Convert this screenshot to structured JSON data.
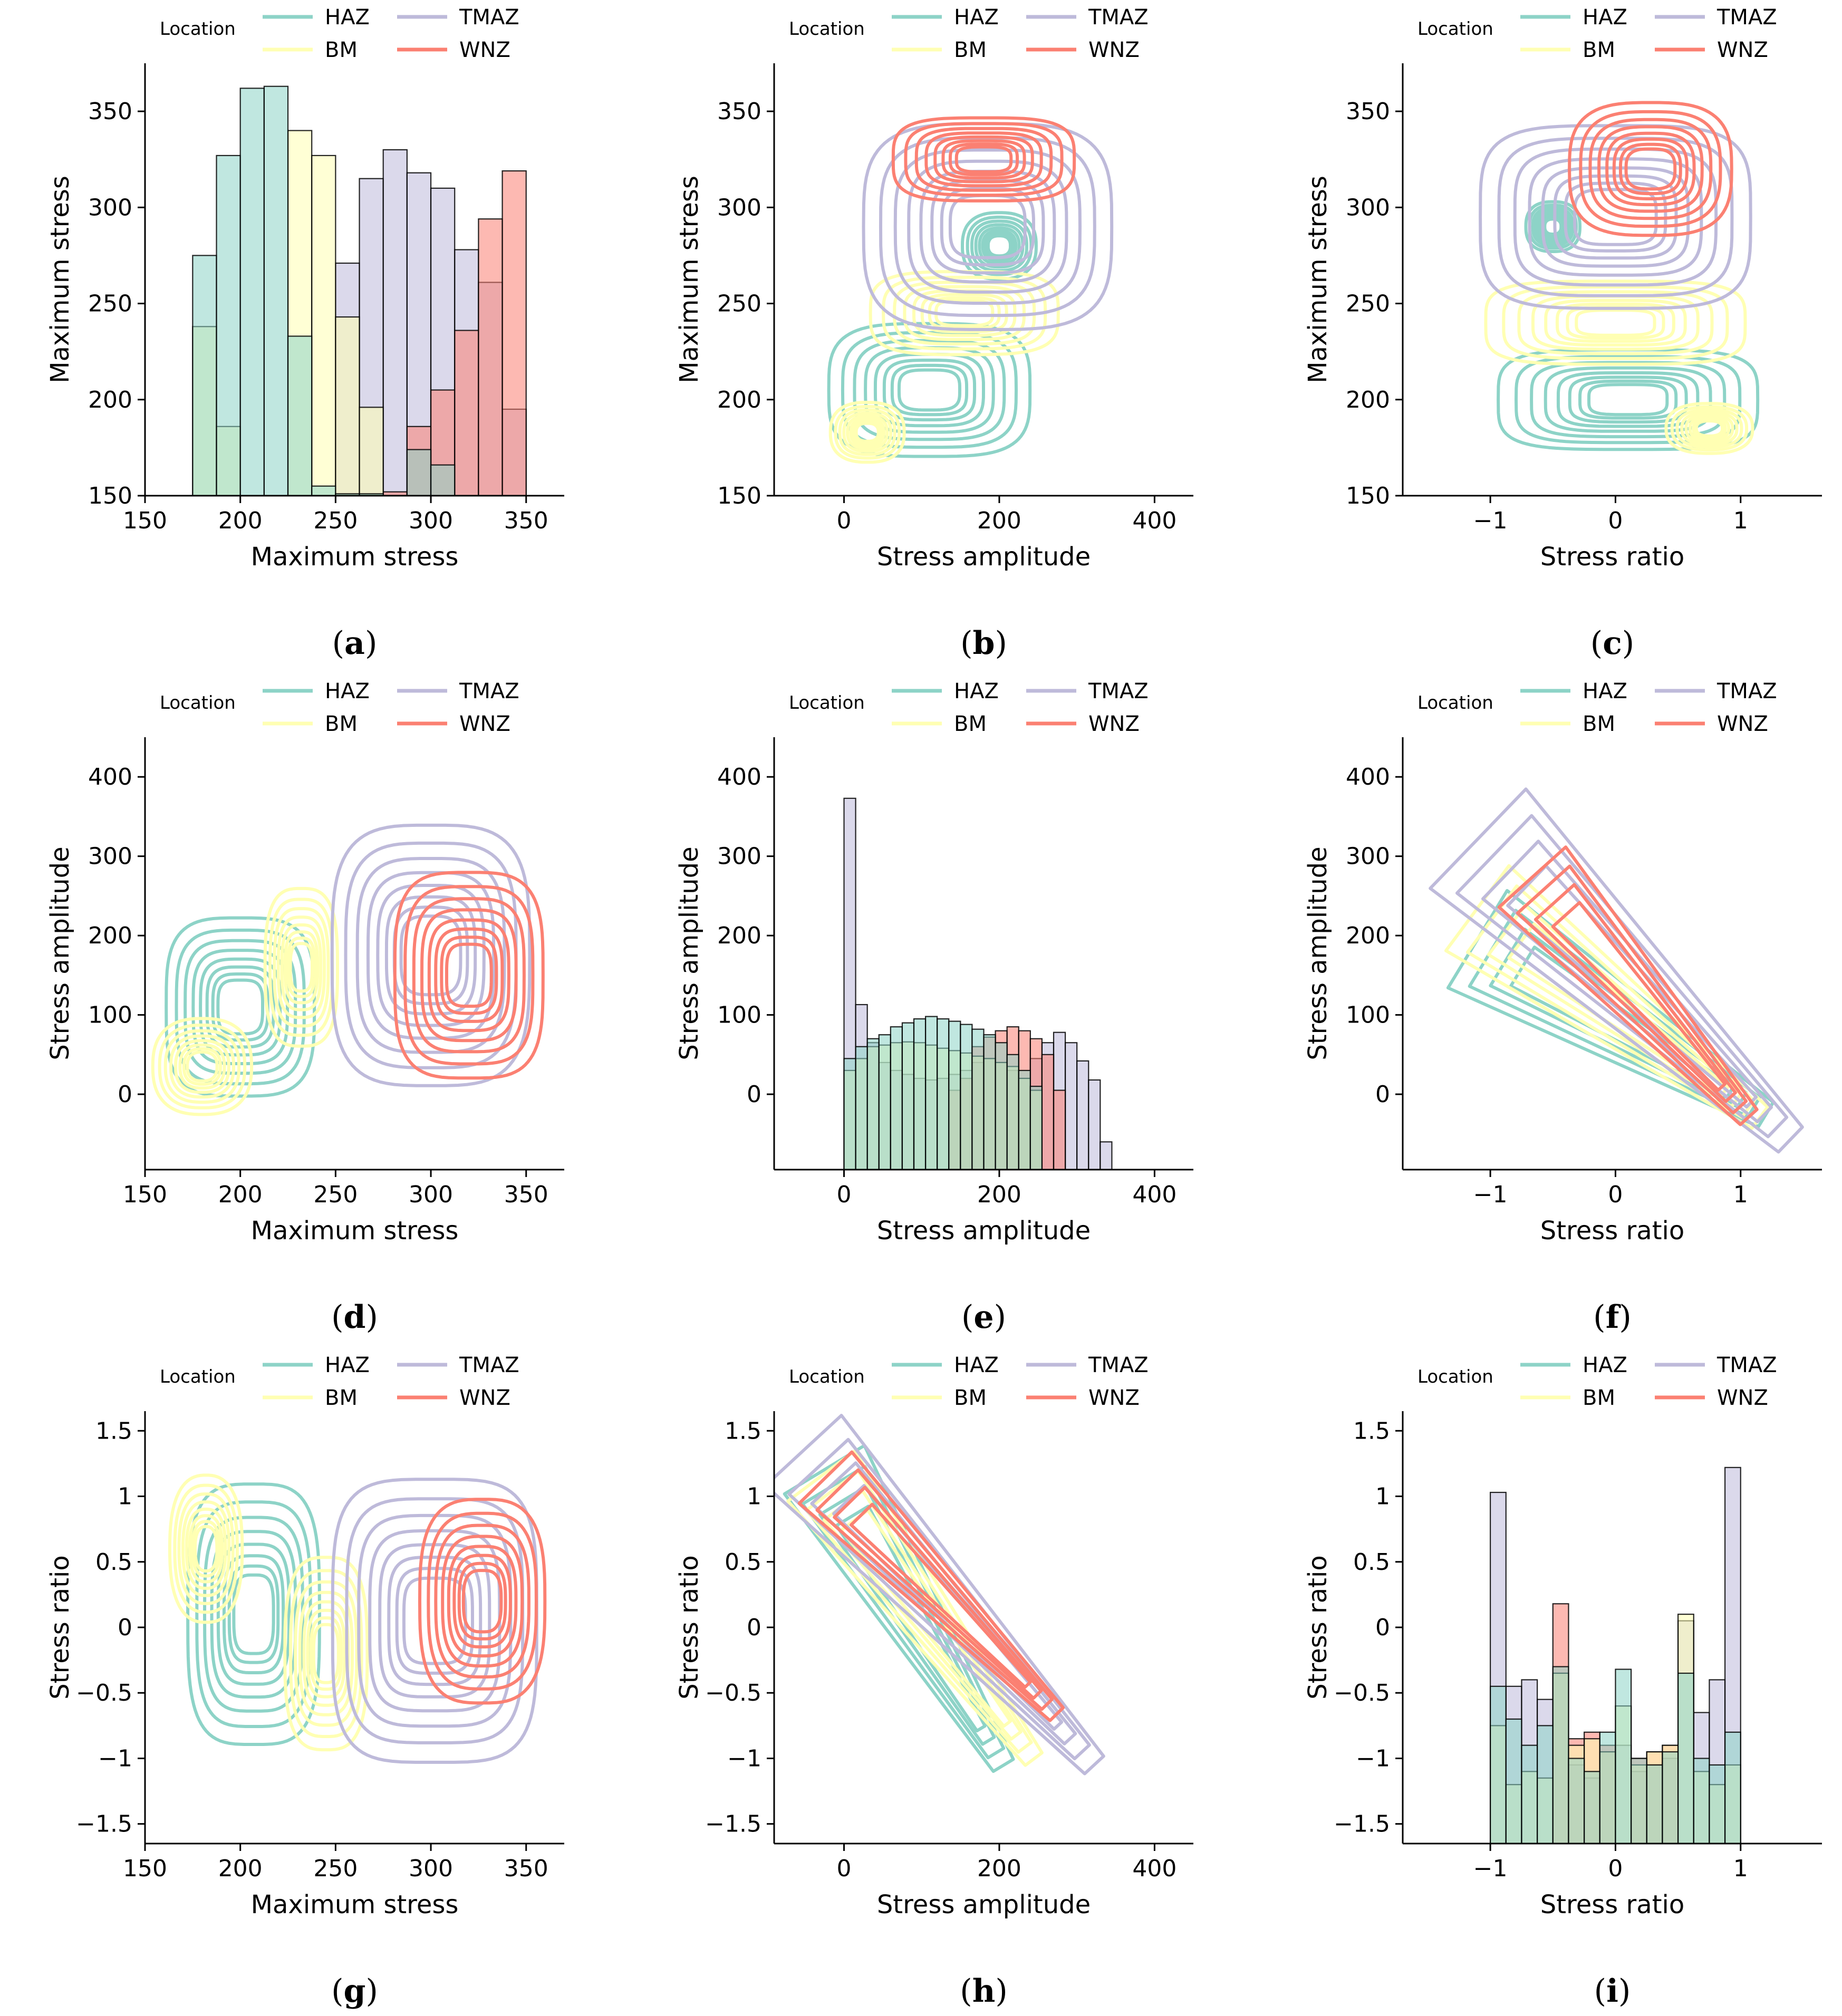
{
  "legend": {
    "title": "Location",
    "entries": [
      {
        "name": "HAZ",
        "color": "#8dd3c7"
      },
      {
        "name": "TMAZ",
        "color": "#bebada"
      },
      {
        "name": "BM",
        "color": "#ffffb3"
      },
      {
        "name": "WNZ",
        "color": "#fb8072"
      }
    ]
  },
  "chart_data": [
    {
      "id": "a",
      "type": "histogram",
      "xlabel": "Maximum stress",
      "ylabel": "Maximum stress",
      "xlim": [
        150,
        370
      ],
      "ylim": [
        150,
        375
      ],
      "xticks": [
        150,
        200,
        250,
        300,
        350
      ],
      "yticks": [
        150,
        200,
        250,
        300,
        350
      ],
      "bin_edges": [
        175,
        187.5,
        200,
        212.5,
        225,
        237.5,
        250,
        262.5,
        275,
        287.5,
        300,
        312.5,
        325,
        337.5,
        350
      ],
      "series": [
        {
          "name": "HAZ",
          "values": [
            275,
            327,
            362,
            363,
            233,
            155,
            151,
            151,
            150,
            174,
            166,
            150,
            150,
            150
          ]
        },
        {
          "name": "BM",
          "values": [
            238,
            186,
            150,
            150,
            340,
            327,
            243,
            196,
            150,
            150,
            150,
            150,
            150,
            150
          ]
        },
        {
          "name": "TMAZ",
          "values": [
            150,
            150,
            150,
            150,
            150,
            150,
            271,
            315,
            330,
            318,
            310,
            278,
            261,
            195
          ]
        },
        {
          "name": "WNZ",
          "values": [
            150,
            150,
            150,
            150,
            150,
            150,
            150,
            150,
            152,
            186,
            205,
            236,
            294,
            319
          ]
        }
      ]
    },
    {
      "id": "b",
      "type": "kde-contour",
      "xlabel": "Stress amplitude",
      "ylabel": "Maximum stress",
      "xlim": [
        -90,
        450
      ],
      "ylim": [
        150,
        375
      ],
      "xticks": [
        0,
        200,
        400
      ],
      "yticks": [
        150,
        200,
        250,
        300,
        350
      ],
      "series": [
        {
          "name": "HAZ",
          "blobs": [
            {
              "cx": 110,
              "cy": 205,
              "rx": 150,
              "ry": 40,
              "p": 3.5
            },
            {
              "cx": 200,
              "cy": 280,
              "rx": 55,
              "ry": 20,
              "p": 2.5
            }
          ]
        },
        {
          "name": "BM",
          "blobs": [
            {
              "cx": 155,
              "cy": 245,
              "rx": 140,
              "ry": 25,
              "p": 3.5
            },
            {
              "cx": 30,
              "cy": 183,
              "rx": 55,
              "ry": 18,
              "p": 2.5
            }
          ]
        },
        {
          "name": "TMAZ",
          "blobs": [
            {
              "cx": 185,
              "cy": 290,
              "rx": 185,
              "ry": 62,
              "p": 3.5
            }
          ]
        },
        {
          "name": "WNZ",
          "blobs": [
            {
              "cx": 180,
              "cy": 325,
              "rx": 135,
              "ry": 25,
              "p": 3.5
            }
          ]
        }
      ]
    },
    {
      "id": "c",
      "type": "kde-contour",
      "xlabel": "Stress ratio",
      "ylabel": "Maximum stress",
      "xlim": [
        -1.7,
        1.65
      ],
      "ylim": [
        150,
        375
      ],
      "xticks": [
        -1,
        0,
        1
      ],
      "yticks": [
        150,
        200,
        250,
        300,
        350
      ],
      "series": [
        {
          "name": "HAZ",
          "blobs": [
            {
              "cx": 0.1,
              "cy": 200,
              "rx": 1.2,
              "ry": 30,
              "p": 4
            },
            {
              "cx": -0.5,
              "cy": 290,
              "rx": 0.25,
              "ry": 15,
              "p": 2.5
            }
          ]
        },
        {
          "name": "BM",
          "blobs": [
            {
              "cx": 0,
              "cy": 240,
              "rx": 1.2,
              "ry": 25,
              "p": 4
            },
            {
              "cx": 0.75,
              "cy": 185,
              "rx": 0.4,
              "ry": 15,
              "p": 2.5
            }
          ]
        },
        {
          "name": "TMAZ",
          "blobs": [
            {
              "cx": 0,
              "cy": 295,
              "rx": 1.25,
              "ry": 55,
              "p": 4
            }
          ]
        },
        {
          "name": "WNZ",
          "blobs": [
            {
              "cx": 0.28,
              "cy": 320,
              "rx": 0.75,
              "ry": 40,
              "p": 3
            }
          ]
        }
      ]
    },
    {
      "id": "d",
      "type": "kde-contour",
      "xlabel": "Maximum stress",
      "ylabel": "Stress amplitude",
      "xlim": [
        150,
        370
      ],
      "ylim": [
        -95,
        450
      ],
      "xticks": [
        150,
        200,
        250,
        300,
        350
      ],
      "yticks": [
        0,
        100,
        200,
        300,
        400
      ],
      "series": [
        {
          "name": "HAZ",
          "blobs": [
            {
              "cx": 200,
              "cy": 110,
              "rx": 45,
              "ry": 130,
              "p": 3.5
            }
          ]
        },
        {
          "name": "BM",
          "blobs": [
            {
              "cx": 180,
              "cy": 35,
              "rx": 30,
              "ry": 70,
              "p": 2.5
            },
            {
              "cx": 232,
              "cy": 160,
              "rx": 22,
              "ry": 115,
              "p": 3
            }
          ]
        },
        {
          "name": "TMAZ",
          "blobs": [
            {
              "cx": 300,
              "cy": 175,
              "rx": 60,
              "ry": 190,
              "p": 3.5
            }
          ]
        },
        {
          "name": "WNZ",
          "blobs": [
            {
              "cx": 320,
              "cy": 150,
              "rx": 45,
              "ry": 150,
              "p": 3.5
            }
          ]
        }
      ]
    },
    {
      "id": "e",
      "type": "histogram",
      "xlabel": "Stress amplitude",
      "ylabel": "Stress amplitude",
      "xlim": [
        -90,
        450
      ],
      "ylim": [
        -95,
        450
      ],
      "xticks": [
        0,
        200,
        400
      ],
      "yticks": [
        0,
        100,
        200,
        300,
        400
      ],
      "bin_edges": [
        0,
        15,
        30,
        45,
        60,
        75,
        90,
        105,
        120,
        135,
        150,
        165,
        180,
        195,
        210,
        225,
        240,
        255,
        270,
        285,
        300,
        315,
        330,
        345
      ],
      "series": [
        {
          "name": "HAZ",
          "values": [
            45,
            60,
            70,
            75,
            85,
            90,
            95,
            98,
            95,
            92,
            88,
            82,
            75,
            65,
            50,
            30,
            10,
            -95,
            -95,
            -95,
            -95,
            -95,
            -95
          ]
        },
        {
          "name": "BM",
          "values": [
            30,
            45,
            60,
            62,
            65,
            66,
            65,
            62,
            58,
            55,
            52,
            48,
            45,
            40,
            35,
            20,
            5,
            -95,
            -95,
            -95,
            -95,
            -95,
            -95
          ]
        },
        {
          "name": "TMAZ",
          "values": [
            373,
            113,
            65,
            40,
            30,
            25,
            20,
            18,
            20,
            25,
            30,
            40,
            45,
            40,
            30,
            20,
            45,
            65,
            78,
            65,
            42,
            18,
            -60
          ]
        },
        {
          "name": "WNZ",
          "values": [
            -95,
            -95,
            -95,
            -95,
            -95,
            -95,
            -95,
            -95,
            -95,
            5,
            20,
            60,
            72,
            80,
            85,
            80,
            70,
            50,
            5,
            -95,
            -95,
            -95,
            -95
          ]
        }
      ]
    },
    {
      "id": "f",
      "type": "kde-contour",
      "xlabel": "Stress ratio",
      "ylabel": "Stress amplitude",
      "xlim": [
        -1.7,
        1.65
      ],
      "ylim": [
        -95,
        450
      ],
      "xticks": [
        -1,
        0,
        1
      ],
      "yticks": [
        0,
        100,
        200,
        300,
        400
      ],
      "series": [
        {
          "name": "HAZ",
          "bands": [
            {
              "x1": -1.15,
              "y1": 200,
              "x2": 1.25,
              "y2": -30,
              "w": 0.1
            }
          ]
        },
        {
          "name": "BM",
          "bands": [
            {
              "x1": -1.15,
              "y1": 240,
              "x2": 1.2,
              "y2": -35,
              "w": 0.09
            }
          ]
        },
        {
          "name": "TMAZ",
          "bands": [
            {
              "x1": -1.15,
              "y1": 330,
              "x2": 1.45,
              "y2": -65,
              "w": 0.13
            }
          ]
        },
        {
          "name": "WNZ",
          "bands": [
            {
              "x1": -0.7,
              "y1": 280,
              "x2": 1.1,
              "y2": -35,
              "w": 0.07
            }
          ]
        }
      ]
    },
    {
      "id": "g",
      "type": "kde-contour",
      "xlabel": "Maximum stress",
      "ylabel": "Stress ratio",
      "xlim": [
        150,
        370
      ],
      "ylim": [
        -1.65,
        1.65
      ],
      "xticks": [
        150,
        200,
        250,
        300,
        350
      ],
      "yticks": [
        -1.5,
        -1.0,
        -0.5,
        0.0,
        0.5,
        1.0,
        1.5
      ],
      "series": [
        {
          "name": "HAZ",
          "blobs": [
            {
              "cx": 207,
              "cy": 0.1,
              "rx": 40,
              "ry": 1.15,
              "p": 3.5
            }
          ]
        },
        {
          "name": "BM",
          "blobs": [
            {
              "cx": 182,
              "cy": 0.6,
              "rx": 22,
              "ry": 0.65,
              "p": 2.5
            },
            {
              "cx": 245,
              "cy": -0.2,
              "rx": 25,
              "ry": 0.85,
              "p": 3
            }
          ]
        },
        {
          "name": "TMAZ",
          "blobs": [
            {
              "cx": 302,
              "cy": 0.05,
              "rx": 62,
              "ry": 1.25,
              "p": 4
            }
          ]
        },
        {
          "name": "WNZ",
          "blobs": [
            {
              "cx": 327,
              "cy": 0.2,
              "rx": 38,
              "ry": 0.9,
              "p": 3
            }
          ]
        }
      ]
    },
    {
      "id": "h",
      "type": "kde-contour",
      "xlabel": "Stress amplitude",
      "ylabel": "Stress ratio",
      "xlim": [
        -90,
        450
      ],
      "ylim": [
        -1.65,
        1.65
      ],
      "xticks": [
        0,
        200,
        400
      ],
      "yticks": [
        -1.5,
        -1.0,
        -0.5,
        0.0,
        0.5,
        1.0,
        1.5
      ],
      "series": [
        {
          "name": "HAZ",
          "bands": [
            {
              "x1": -30,
              "y1": 1.25,
              "x2": 210,
              "y2": -1.1,
              "w": 12
            }
          ]
        },
        {
          "name": "BM",
          "bands": [
            {
              "x1": -35,
              "y1": 1.2,
              "x2": 250,
              "y2": -1.05,
              "w": 10
            }
          ]
        },
        {
          "name": "TMAZ",
          "bands": [
            {
              "x1": -60,
              "y1": 1.4,
              "x2": 330,
              "y2": -1.1,
              "w": 14
            }
          ]
        },
        {
          "name": "WNZ",
          "bands": [
            {
              "x1": -30,
              "y1": 1.18,
              "x2": 280,
              "y2": -0.7,
              "w": 8
            }
          ]
        }
      ]
    },
    {
      "id": "i",
      "type": "histogram",
      "xlabel": "Stress ratio",
      "ylabel": "Stress ratio",
      "xlim": [
        -1.7,
        1.65
      ],
      "ylim": [
        -1.65,
        1.65
      ],
      "xticks": [
        -1,
        0,
        1
      ],
      "yticks": [
        -1.5,
        -1.0,
        -0.5,
        0.0,
        0.5,
        1.0,
        1.5
      ],
      "bin_edges": [
        -1.0,
        -0.875,
        -0.75,
        -0.625,
        -0.5,
        -0.375,
        -0.25,
        -0.125,
        0.0,
        0.125,
        0.25,
        0.375,
        0.5,
        0.625,
        0.75,
        0.875,
        1.0
      ],
      "series": [
        {
          "name": "HAZ",
          "values": [
            -0.45,
            -0.7,
            -0.9,
            -0.75,
            -0.3,
            -1.0,
            -1.1,
            -0.8,
            -0.32,
            -1.0,
            -1.05,
            -0.95,
            -0.35,
            -1.0,
            -1.05,
            -0.8
          ]
        },
        {
          "name": "BM",
          "values": [
            -0.75,
            -1.2,
            -1.1,
            -1.15,
            -0.35,
            -0.9,
            -0.85,
            -0.95,
            -0.6,
            -1.05,
            -0.95,
            -0.9,
            0.1,
            -1.1,
            -1.2,
            -1.05
          ]
        },
        {
          "name": "TMAZ",
          "values": [
            1.03,
            -0.45,
            -0.4,
            -0.55,
            -0.35,
            -1.05,
            -1.15,
            -0.95,
            -0.9,
            -1.1,
            -1.05,
            -1.0,
            0.05,
            -0.65,
            -0.4,
            1.22
          ]
        },
        {
          "name": "WNZ",
          "values": [
            -1.65,
            -1.65,
            -1.65,
            -1.65,
            0.18,
            -0.85,
            -0.8,
            -0.9,
            -1.65,
            -1.0,
            -0.95,
            -0.9,
            -1.65,
            -1.65,
            -1.65,
            -1.65
          ]
        }
      ]
    }
  ],
  "panel_labels": [
    "(a)",
    "(b)",
    "(c)",
    "(d)",
    "(e)",
    "(f)",
    "(g)",
    "(h)",
    "(i)"
  ]
}
